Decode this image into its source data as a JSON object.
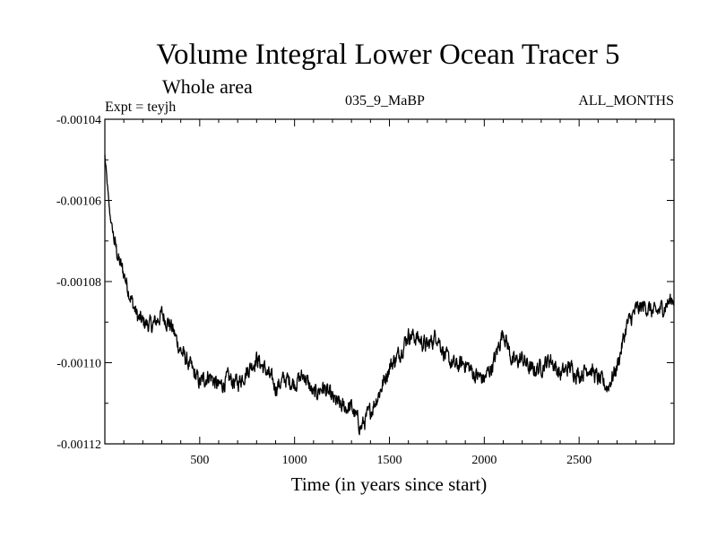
{
  "chart_data": {
    "type": "line",
    "title": "Volume Integral Lower Ocean Tracer 5",
    "subtitle": "Whole area",
    "experiment_label": "Expt = teyjh",
    "run_label": "035_9_MaBP",
    "period_label": "ALL_MONTHS",
    "xlabel": "Time (in years since start)",
    "ylabel": "",
    "xlim": [
      0,
      3000
    ],
    "ylim": [
      -0.00112,
      -0.00104
    ],
    "x_ticks": [
      500,
      1000,
      1500,
      2000,
      2500
    ],
    "x_tick_labels": [
      "500",
      "1000",
      "1500",
      "2000",
      "2500"
    ],
    "y_ticks": [
      -0.00104,
      -0.00106,
      -0.00108,
      -0.0011,
      -0.00112
    ],
    "y_tick_labels": [
      "-0.00104",
      "-0.00106",
      "-0.00108",
      "-0.00110",
      "-0.00112"
    ],
    "series": [
      {
        "name": "Tracer 5",
        "color": "#000000",
        "x": [
          0,
          25,
          50,
          75,
          100,
          125,
          150,
          175,
          200,
          250,
          300,
          350,
          400,
          450,
          500,
          550,
          600,
          650,
          700,
          750,
          800,
          850,
          900,
          950,
          1000,
          1050,
          1100,
          1150,
          1200,
          1250,
          1300,
          1350,
          1400,
          1450,
          1500,
          1550,
          1600,
          1650,
          1700,
          1750,
          1800,
          1850,
          1900,
          1950,
          2000,
          2050,
          2100,
          2150,
          2200,
          2250,
          2300,
          2350,
          2400,
          2450,
          2500,
          2550,
          2600,
          2650,
          2700,
          2750,
          2800,
          2850,
          2900,
          2950,
          3000
        ],
        "y": [
          -0.001049,
          -0.001063,
          -0.00107,
          -0.001075,
          -0.001078,
          -0.001082,
          -0.001086,
          -0.001089,
          -0.00109,
          -0.001091,
          -0.001088,
          -0.001091,
          -0.001097,
          -0.001101,
          -0.001105,
          -0.001103,
          -0.001106,
          -0.001104,
          -0.001105,
          -0.001102,
          -0.001099,
          -0.001102,
          -0.001106,
          -0.001104,
          -0.001105,
          -0.001103,
          -0.001108,
          -0.001106,
          -0.001109,
          -0.001111,
          -0.001111,
          -0.001116,
          -0.001112,
          -0.001107,
          -0.001101,
          -0.001098,
          -0.001093,
          -0.001094,
          -0.001096,
          -0.001093,
          -0.001099,
          -0.001101,
          -0.0011,
          -0.001103,
          -0.001104,
          -0.0011,
          -0.001092,
          -0.0011,
          -0.001099,
          -0.001102,
          -0.001101,
          -0.001099,
          -0.001103,
          -0.001101,
          -0.001103,
          -0.001101,
          -0.001104,
          -0.001106,
          -0.001101,
          -0.001091,
          -0.001087,
          -0.001086,
          -0.001088,
          -0.001086,
          -0.001084
        ]
      }
    ]
  }
}
